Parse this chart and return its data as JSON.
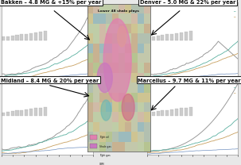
{
  "title_bakken": "Bakken – 4.8 MG & +15% per year",
  "title_denver": "Denver – 5.0 MG & 22% per year",
  "title_midland": "Midland – 8.4 MG & 20% per year",
  "title_marcellus": "Marcellus – 9.7 MG & 11% per year",
  "map_title": "Lower 48 shale plays",
  "bg_color": "#e8e8e8",
  "chart_bg": "#ffffff",
  "panel_edge": "#888888",
  "label_box_bg": "#ffffff",
  "label_box_edge": "#333333",
  "line_gray": "#9a9a9a",
  "line_teal": "#5ab0a0",
  "line_tan": "#c8a060",
  "line_blue": "#7090c0",
  "line_lgray": "#bbbbbb",
  "n_pts": 70
}
